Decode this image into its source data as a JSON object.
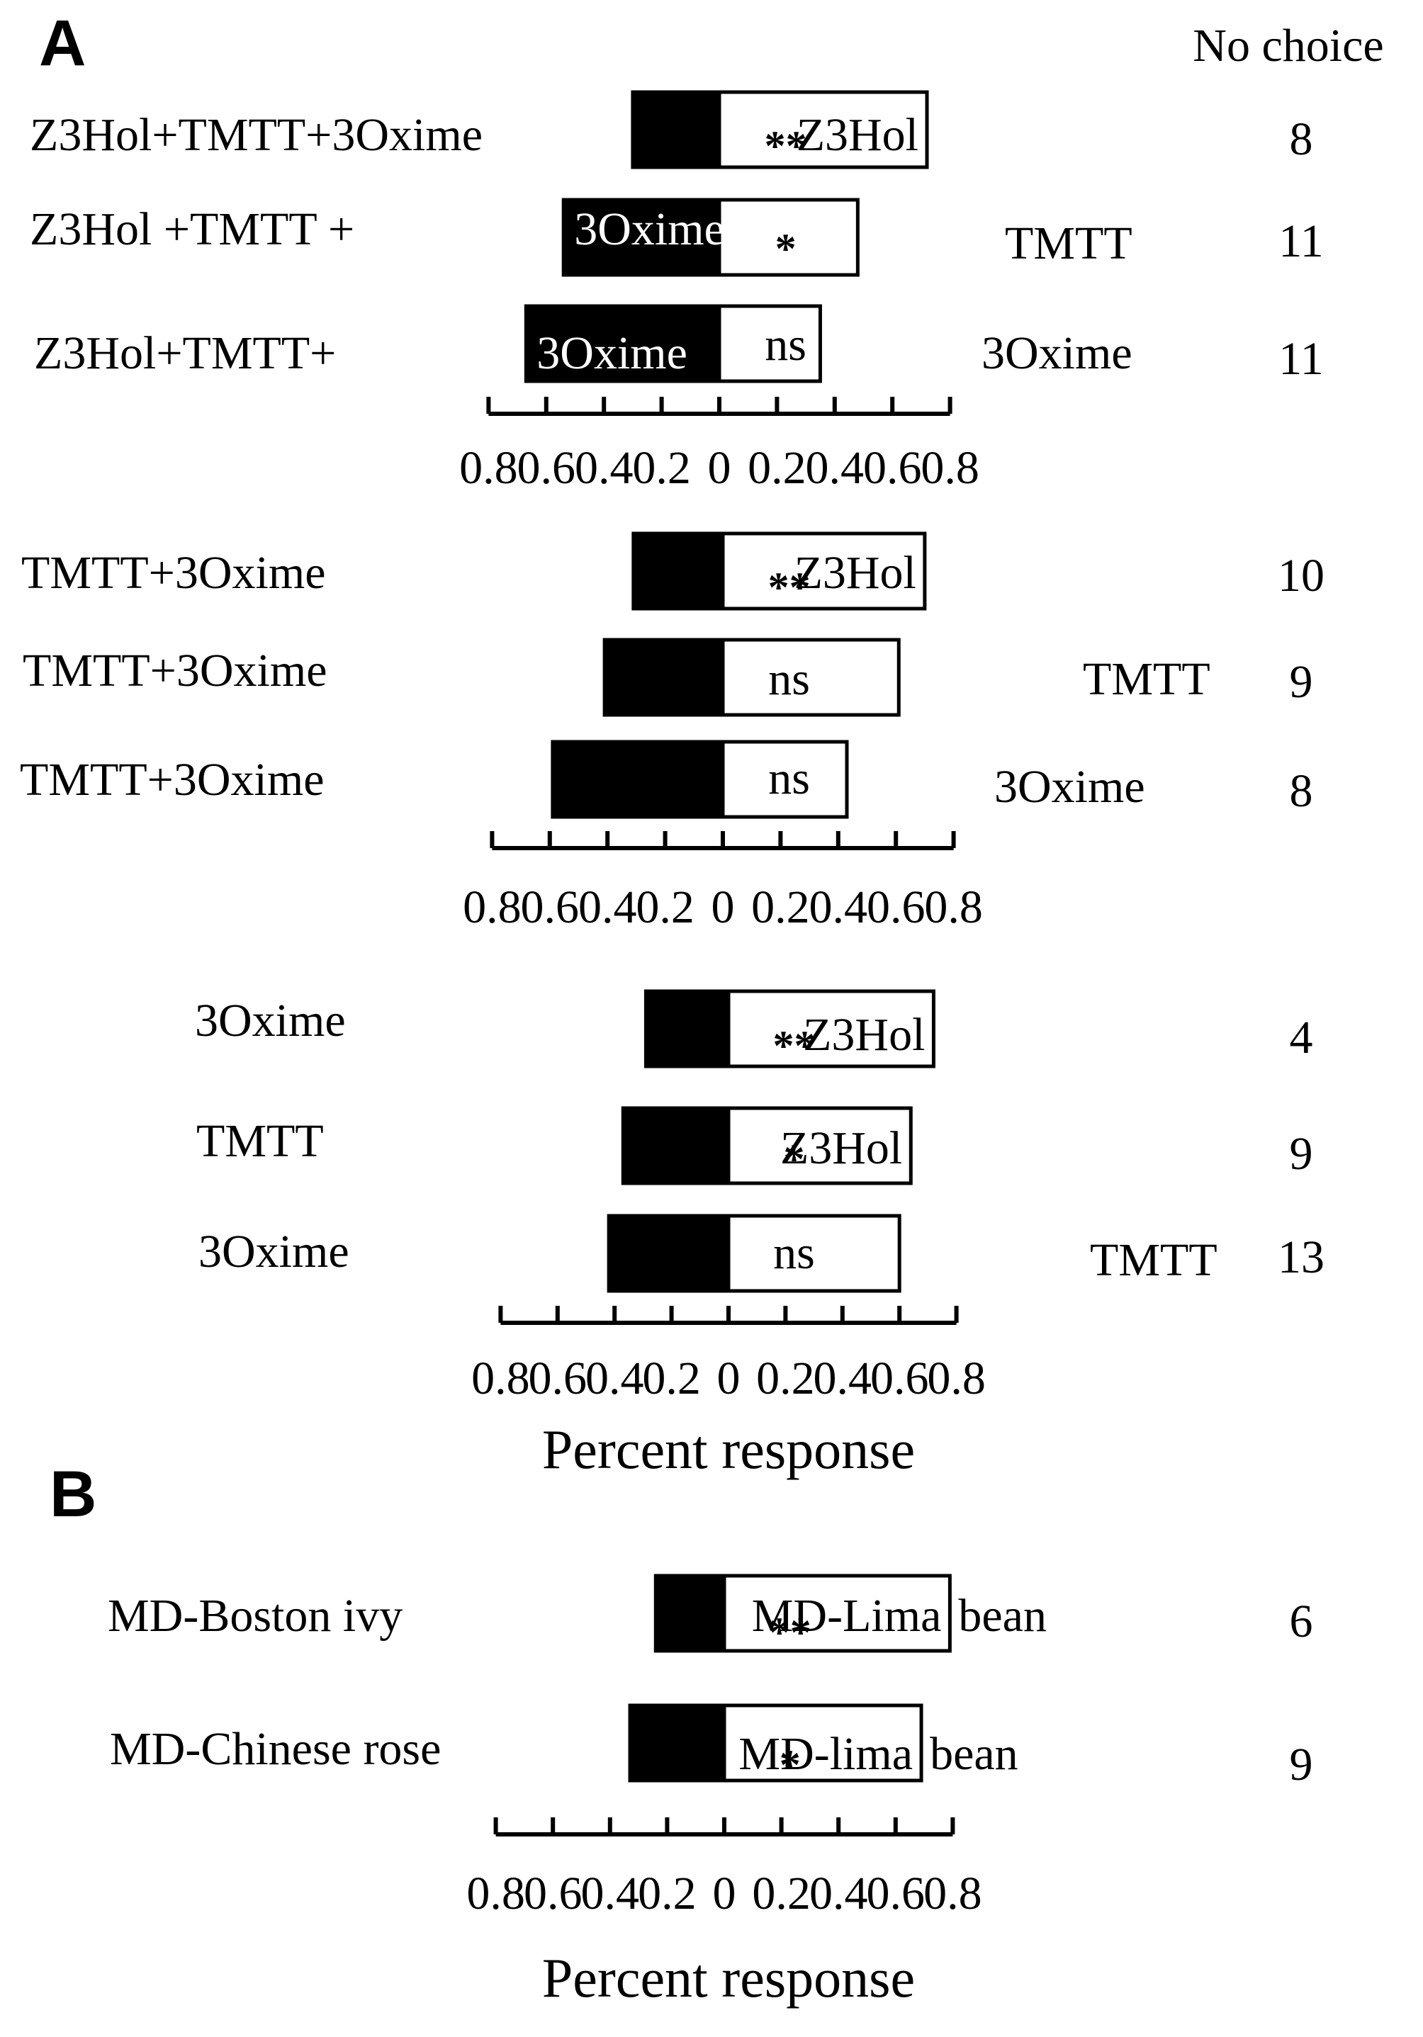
{
  "header": {
    "no_choice_label": "No choice"
  },
  "chart_data": [
    {
      "type": "bar",
      "panel": "A",
      "x_tick_labels": [
        "0.8",
        "0.6",
        "0.4",
        "0.2",
        "0",
        "0.2",
        "0.4",
        "0.6",
        "0.8"
      ],
      "xlabel": "",
      "xlim": [
        -0.8,
        0.8
      ],
      "rows": [
        {
          "left_label": "Z3Hol+TMTT+3Oxime",
          "left_value": 0.3,
          "right_label": "Z3Hol",
          "right_value": 0.72,
          "sig": "**",
          "no_choice": "8"
        },
        {
          "left_label": "Z3Hol +TMTT + ",
          "left_inside_label": "3Oxime",
          "left_value": 0.54,
          "right_label": "TMTT",
          "right_value": 0.48,
          "sig": "*",
          "no_choice": "11"
        },
        {
          "left_label": "Z3Hol+TMTT+ ",
          "left_inside_label": "3Oxime",
          "left_value": 0.67,
          "right_label": "3Oxime",
          "right_value": 0.35,
          "sig": "ns",
          "no_choice": "11"
        }
      ]
    },
    {
      "type": "bar",
      "panel": "A",
      "x_tick_labels": [
        "0.8",
        "0.6",
        "0.4",
        "0.2",
        "0",
        "0.2",
        "0.4",
        "0.6",
        "0.8"
      ],
      "xlabel": "",
      "xlim": [
        -0.8,
        0.8
      ],
      "rows": [
        {
          "left_label": "TMTT+3Oxime",
          "left_value": 0.31,
          "right_label": "Z3Hol",
          "right_value": 0.7,
          "sig": "**",
          "no_choice": "10"
        },
        {
          "left_label": "TMTT+3Oxime",
          "left_value": 0.41,
          "right_label": "TMTT",
          "right_value": 0.61,
          "sig": "ns",
          "no_choice": "9"
        },
        {
          "left_label": "TMTT+3Oxime",
          "left_value": 0.59,
          "right_label": "3Oxime",
          "right_value": 0.43,
          "sig": "ns",
          "no_choice": "8"
        }
      ]
    },
    {
      "type": "bar",
      "panel": "A",
      "x_tick_labels": [
        "0.8",
        "0.6",
        "0.4",
        "0.2",
        "0",
        "0.2",
        "0.4",
        "0.6",
        "0.8"
      ],
      "xlabel": "Percent response",
      "xlim": [
        -0.8,
        0.8
      ],
      "rows": [
        {
          "left_label": "3Oxime",
          "left_value": 0.29,
          "right_label": "Z3Hol",
          "right_value": 0.72,
          "sig": "**",
          "no_choice": "4"
        },
        {
          "left_label": "TMTT",
          "left_value": 0.37,
          "right_label": "Z3Hol",
          "right_value": 0.64,
          "sig": "*",
          "no_choice": "9"
        },
        {
          "left_label": "3Oxime",
          "left_value": 0.42,
          "right_label": "TMTT",
          "right_value": 0.6,
          "sig": "ns",
          "no_choice": "13"
        }
      ]
    },
    {
      "type": "bar",
      "panel": "B",
      "x_tick_labels": [
        "0.8",
        "0.6",
        "0.4",
        "0.2",
        "0",
        "0.2",
        "0.4",
        "0.6",
        "0.8"
      ],
      "xlabel": "Percent response",
      "xlim": [
        -0.8,
        0.8
      ],
      "rows": [
        {
          "left_label": "MD-Boston ivy",
          "left_value": 0.24,
          "right_label": "MD-Lima",
          "right_outside_label": "bean",
          "right_value": 0.79,
          "sig": "**",
          "no_choice": "6"
        },
        {
          "left_label": "MD-Chinese  rose",
          "left_value": 0.33,
          "right_label": "MD-lima",
          "right_outside_label": "bean",
          "right_value": 0.69,
          "sig": "*",
          "no_choice": "9"
        }
      ]
    }
  ]
}
